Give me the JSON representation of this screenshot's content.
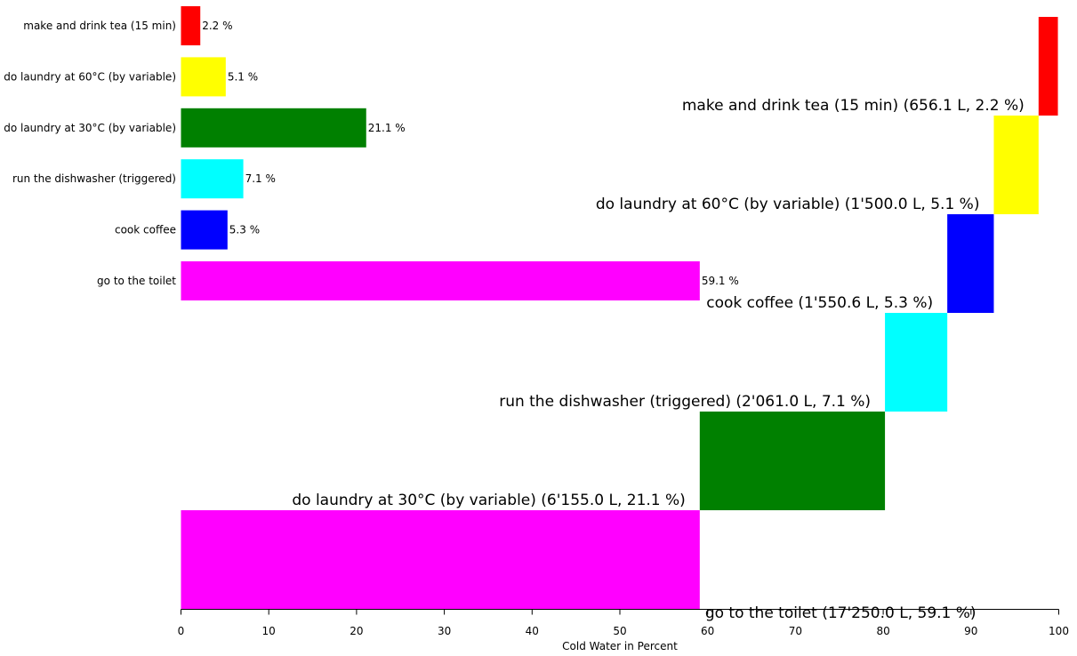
{
  "chart_data": [
    {
      "type": "bar",
      "orientation": "horizontal",
      "categories": [
        "make and drink tea (15 min)",
        "do laundry at 60°C (by variable)",
        "do laundry at 30°C (by variable)",
        "run the dishwasher (triggered)",
        "cook coffee",
        "go to the toilet"
      ],
      "values": [
        2.2,
        5.1,
        21.1,
        7.1,
        5.3,
        59.1
      ],
      "value_labels": [
        "2.2 %",
        "5.1 %",
        "21.1 %",
        "7.1 %",
        "5.3 %",
        "59.1 %"
      ],
      "colors": [
        "#ff0000",
        "#ffff00",
        "#008000",
        "#00ffff",
        "#0000ff",
        "#ff00ff"
      ],
      "xlim": [
        0,
        100
      ]
    },
    {
      "type": "bar",
      "subtype": "waterfall",
      "order": [
        "go to the toilet",
        "do laundry at 30°C (by variable)",
        "run the dishwasher (triggered)",
        "cook coffee",
        "do laundry at 60°C (by variable)",
        "make and drink tea (15 min)"
      ],
      "values": [
        59.1,
        21.1,
        7.1,
        5.3,
        5.1,
        2.2
      ],
      "liters": [
        "17'250.0 L",
        "6'155.0 L",
        "2'061.0 L",
        "1'550.6 L",
        "1'500.0 L",
        "656.1 L"
      ],
      "labels": [
        "go to the toilet (17'250.0 L, 59.1 %)",
        "do laundry at 30°C (by variable) (6'155.0 L, 21.1 %)",
        "run the dishwasher (triggered) (2'061.0 L, 7.1 %)",
        "cook coffee (1'550.6 L, 5.3 %)",
        "do laundry at 60°C (by variable) (1'500.0 L, 5.1 %)",
        "make and drink tea (15 min) (656.1 L, 2.2 %)"
      ],
      "colors": [
        "#ff00ff",
        "#008000",
        "#00ffff",
        "#0000ff",
        "#ffff00",
        "#ff0000"
      ],
      "xlim": [
        0,
        100
      ],
      "xticks": [
        0,
        10,
        20,
        30,
        40,
        50,
        60,
        70,
        80,
        90,
        100
      ],
      "xlabel": "Cold Water in Percent"
    }
  ]
}
